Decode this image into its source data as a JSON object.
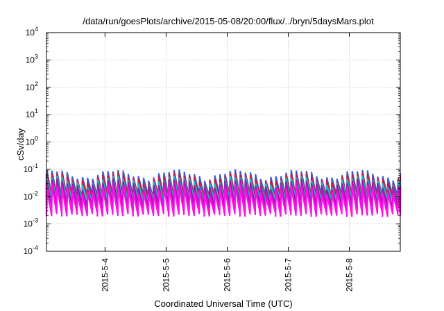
{
  "chart_data": {
    "type": "line",
    "title": "/data/run/goesPlots/archive/2015-05-08/20:00/flux/../bryn/5daysMars.plot",
    "xlabel": "Coordinated Universal Time (UTC)",
    "ylabel": "cSv/day",
    "y_scale": "log",
    "ylim": [
      0.0001,
      10000
    ],
    "y_ticks": [
      {
        "base": "10",
        "exp": "-4"
      },
      {
        "base": "10",
        "exp": "-3"
      },
      {
        "base": "10",
        "exp": "-2"
      },
      {
        "base": "10",
        "exp": "-1"
      },
      {
        "base": "10",
        "exp": "0"
      },
      {
        "base": "10",
        "exp": "1"
      },
      {
        "base": "10",
        "exp": "2"
      },
      {
        "base": "10",
        "exp": "3"
      },
      {
        "base": "10",
        "exp": "4"
      }
    ],
    "xlim": [
      "2015-05-03T01:00",
      "2015-05-08T20:00"
    ],
    "x_ticks": [
      {
        "label": "2015-5-4",
        "value": "2015-05-04T00:00"
      },
      {
        "label": "2015-5-5",
        "value": "2015-05-05T00:00"
      },
      {
        "label": "2015-5-6",
        "value": "2015-05-06T00:00"
      },
      {
        "label": "2015-5-7",
        "value": "2015-05-07T00:00"
      },
      {
        "label": "2015-5-8",
        "value": "2015-05-08T00:00"
      }
    ],
    "grid": true,
    "legend": "none",
    "pattern": {
      "description": "sawtooth repeating roughly every 2 hours",
      "period_hours": 2.0,
      "peak_offset_hours": 0.15
    },
    "series": [
      {
        "color": "#3a5fd0",
        "peak": 0.065,
        "trough": 0.01
      },
      {
        "color": "#d01a3a",
        "peak": 0.05,
        "trough": 0.0085
      },
      {
        "color": "#20b8c8",
        "peak": 0.038,
        "trough": 0.0068
      },
      {
        "color": "#7a2a9a",
        "peak": 0.03,
        "trough": 0.0045
      },
      {
        "color": "#c010c8",
        "peak": 0.024,
        "trough": 0.0032
      },
      {
        "color": "#ff10e8",
        "peak": 0.018,
        "trough": 0.0022
      }
    ]
  }
}
